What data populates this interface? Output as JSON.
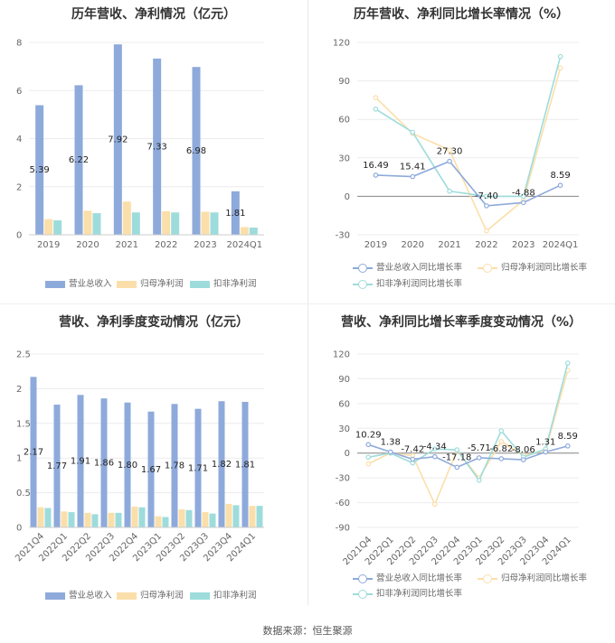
{
  "colors": {
    "revenue": "#8eaadb",
    "net_profit": "#fbdfaa",
    "deducted_profit": "#9edcdc",
    "rev_growth_line": "#8eaadb",
    "np_growth_line": "#fbdfaa",
    "dp_growth_line": "#9edcdc"
  },
  "source": "数据来源：恒生聚源",
  "chart_data": [
    {
      "type": "bar",
      "title": "历年营收、净利情况（亿元）",
      "categories": [
        "2019",
        "2020",
        "2021",
        "2022",
        "2023",
        "2024Q1"
      ],
      "ylim": [
        0,
        8
      ],
      "yticks": [
        "0",
        "2",
        "4",
        "6",
        "8"
      ],
      "series": [
        {
          "name": "营业总收入",
          "values": [
            5.39,
            6.22,
            7.92,
            7.33,
            6.98,
            1.81
          ],
          "labels": [
            "5.39",
            "6.22",
            "7.92",
            "7.33",
            "6.98",
            "1.81"
          ]
        },
        {
          "name": "归母净利润",
          "values": [
            0.65,
            1.0,
            1.38,
            0.98,
            0.96,
            0.32
          ]
        },
        {
          "name": "扣非净利润",
          "values": [
            0.6,
            0.9,
            0.93,
            0.93,
            0.93,
            0.3
          ]
        }
      ],
      "legend": "bottom"
    },
    {
      "type": "line",
      "title": "历年营收、净利同比增长率情况（%）",
      "categories": [
        "2019",
        "2020",
        "2021",
        "2022",
        "2023",
        "2024Q1"
      ],
      "ylim": [
        -30,
        120
      ],
      "yticks": [
        "-30",
        "0",
        "30",
        "60",
        "90",
        "120"
      ],
      "series": [
        {
          "name": "营业总收入同比增长率",
          "values": [
            16.49,
            15.41,
            27.3,
            -7.4,
            -4.88,
            8.59
          ],
          "labels": [
            "16.49",
            "15.41",
            "27.30",
            "-7.40",
            "-4.88",
            "8.59"
          ]
        },
        {
          "name": "归母净利润同比增长率",
          "values": [
            77,
            49,
            36,
            -27,
            -3,
            100
          ]
        },
        {
          "name": "扣非净利润同比增长率",
          "values": [
            68,
            50,
            4,
            0,
            0,
            109
          ]
        }
      ],
      "legend": "bottom"
    },
    {
      "type": "bar",
      "title": "营收、净利季度变动情况（亿元）",
      "categories": [
        "2021Q4",
        "2022Q1",
        "2022Q2",
        "2022Q3",
        "2022Q4",
        "2023Q1",
        "2023Q2",
        "2023Q3",
        "2023Q4",
        "2024Q1"
      ],
      "ylim": [
        0,
        2.5
      ],
      "yticks": [
        "0",
        "0.5",
        "1",
        "1.5",
        "2",
        "2.5"
      ],
      "series": [
        {
          "name": "营业总收入",
          "values": [
            2.17,
            1.77,
            1.91,
            1.86,
            1.8,
            1.67,
            1.78,
            1.71,
            1.82,
            1.81
          ],
          "labels": [
            "2.17",
            "1.77",
            "1.91",
            "1.86",
            "1.80",
            "1.67",
            "1.78",
            "1.71",
            "1.82",
            "1.81"
          ]
        },
        {
          "name": "归母净利润",
          "values": [
            0.29,
            0.23,
            0.21,
            0.21,
            0.3,
            0.16,
            0.26,
            0.22,
            0.34,
            0.31
          ]
        },
        {
          "name": "扣非净利润",
          "values": [
            0.28,
            0.22,
            0.19,
            0.21,
            0.29,
            0.15,
            0.25,
            0.2,
            0.32,
            0.31
          ]
        }
      ],
      "legend": "bottom"
    },
    {
      "type": "line",
      "title": "营收、净利同比增长率季度变动情况（%）",
      "categories": [
        "2021Q4",
        "2022Q1",
        "2022Q2",
        "2022Q3",
        "2022Q4",
        "2023Q1",
        "2023Q2",
        "2023Q3",
        "2023Q4",
        "2024Q1"
      ],
      "ylim": [
        -90,
        120
      ],
      "yticks": [
        "-90",
        "-60",
        "-30",
        "0",
        "30",
        "60",
        "90",
        "120"
      ],
      "series": [
        {
          "name": "营业总收入同比增长率",
          "values": [
            10.29,
            1.38,
            -7.42,
            -4.34,
            -17.18,
            -5.71,
            -6.82,
            -8.06,
            1.31,
            8.59
          ],
          "labels": [
            "10.29",
            "1.38",
            "-7.42",
            "-4.34",
            "-17.18",
            "-5.71",
            "-6.82",
            "-8.06",
            "1.31",
            "8.59"
          ]
        },
        {
          "name": "归母净利润同比增长率",
          "values": [
            -13,
            0,
            -3,
            -62,
            3,
            -30,
            14,
            -3,
            3,
            100
          ]
        },
        {
          "name": "扣非净利润同比增长率",
          "values": [
            -5,
            0,
            -12,
            5,
            4,
            -33,
            27,
            -5,
            5,
            109
          ]
        }
      ],
      "legend": "bottom"
    }
  ]
}
